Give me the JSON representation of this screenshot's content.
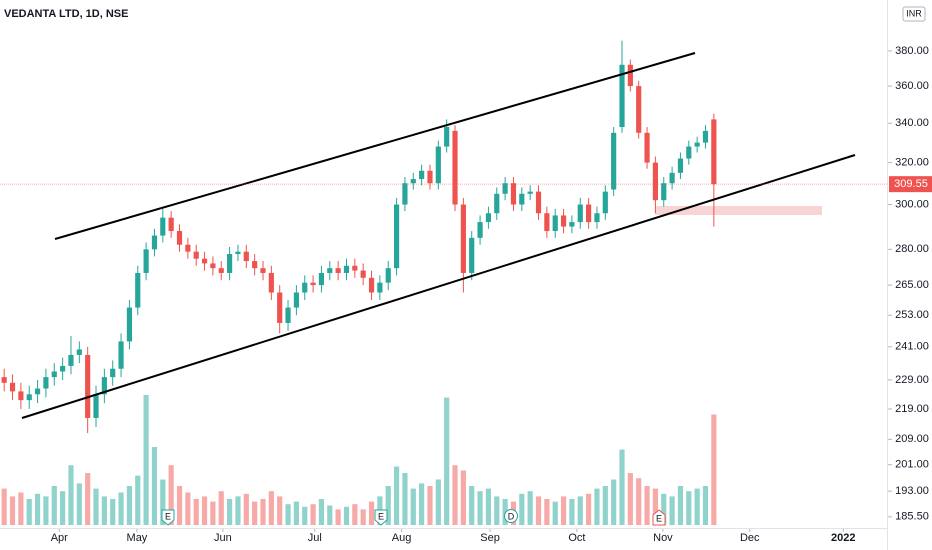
{
  "chart_data": {
    "type": "candlestick",
    "title": "VEDANTA LTD, 1D, NSE",
    "currency": "INR",
    "log_scale": true,
    "grid": false,
    "up_color": "#26a69a",
    "down_color": "#ef5350",
    "up_volume_color": "#8fd3cc",
    "down_volume_color": "#f7a9a7",
    "ylim": [
      179,
      411
    ],
    "yticks": [
      {
        "value": 185.5,
        "label": "185.50"
      },
      {
        "value": 193,
        "label": "193.00"
      },
      {
        "value": 201,
        "label": "201.00"
      },
      {
        "value": 209,
        "label": "209.00"
      },
      {
        "value": 219,
        "label": "219.00"
      },
      {
        "value": 229,
        "label": "229.00"
      },
      {
        "value": 241,
        "label": "241.00"
      },
      {
        "value": 253,
        "label": "253.00"
      },
      {
        "value": 265,
        "label": "265.00"
      },
      {
        "value": 280,
        "label": "280.00"
      },
      {
        "value": 300,
        "label": "300.00"
      },
      {
        "value": 320,
        "label": "320.00"
      },
      {
        "value": 340,
        "label": "340.00"
      },
      {
        "value": 360,
        "label": "360.00"
      },
      {
        "value": 380,
        "label": "380.00"
      }
    ],
    "xlim": [
      -0.5,
      105.5
    ],
    "xticks": [
      {
        "value": 6.6,
        "label": "Apr"
      },
      {
        "value": 15.9,
        "label": "May"
      },
      {
        "value": 26.2,
        "label": "Jun"
      },
      {
        "value": 37.2,
        "label": "Jul"
      },
      {
        "value": 47.6,
        "label": "Aug"
      },
      {
        "value": 58.2,
        "label": "Sep"
      },
      {
        "value": 68.6,
        "label": "Oct"
      },
      {
        "value": 78.9,
        "label": "Nov"
      },
      {
        "value": 89.3,
        "label": "Dec"
      },
      {
        "value": 100.5,
        "label": "2022"
      }
    ],
    "last_price": 309.55,
    "events": [
      "E",
      "E",
      "D",
      "E"
    ],
    "open": [
      230,
      228,
      225,
      222,
      224,
      226,
      230,
      232,
      234,
      238,
      238,
      216,
      224,
      230,
      233,
      243,
      256,
      270,
      280,
      286,
      294,
      288,
      282,
      279,
      276,
      274,
      272,
      270,
      278,
      279,
      275,
      272,
      270,
      262,
      250,
      256,
      262,
      266,
      265,
      270,
      272,
      270,
      273,
      271,
      268,
      262,
      266,
      272,
      300,
      310,
      312,
      316,
      310,
      328,
      336,
      300,
      270,
      285,
      292,
      296,
      305,
      310,
      300,
      305,
      306,
      296,
      288,
      295,
      290,
      292,
      300,
      292,
      296,
      307,
      338,
      372,
      360,
      335,
      320,
      302,
      310,
      315,
      322,
      328,
      330,
      342
    ],
    "high": [
      233,
      231,
      228,
      227,
      229,
      233,
      235,
      237,
      245,
      243,
      241,
      227,
      233,
      236,
      246,
      259,
      273,
      283,
      289,
      298,
      297,
      291,
      285,
      282,
      279,
      277,
      275,
      281,
      282,
      282,
      278,
      275,
      273,
      265,
      259,
      265,
      269,
      269,
      273,
      275,
      275,
      276,
      276,
      274,
      271,
      269,
      275,
      303,
      313,
      315,
      319,
      319,
      331,
      342,
      339,
      303,
      288,
      295,
      299,
      308,
      313,
      313,
      308,
      309,
      309,
      299,
      298,
      298,
      295,
      303,
      303,
      299,
      309,
      338,
      386,
      375,
      363,
      338,
      323,
      313,
      318,
      325,
      331,
      333,
      339,
      345
    ],
    "low": [
      225,
      222,
      219,
      219,
      221,
      223,
      227,
      229,
      231,
      235,
      211,
      213,
      221,
      227,
      230,
      240,
      253,
      267,
      277,
      283,
      285,
      279,
      276,
      273,
      271,
      269,
      267,
      267,
      275,
      272,
      269,
      267,
      259,
      246,
      247,
      253,
      259,
      262,
      262,
      267,
      267,
      267,
      268,
      265,
      259,
      259,
      263,
      269,
      297,
      307,
      309,
      307,
      307,
      325,
      297,
      262,
      267,
      282,
      289,
      293,
      302,
      297,
      297,
      302,
      293,
      285,
      285,
      287,
      287,
      289,
      289,
      289,
      293,
      304,
      335,
      357,
      332,
      317,
      296,
      299,
      307,
      312,
      319,
      325,
      327,
      290
    ],
    "close": [
      228,
      225,
      222,
      224,
      226,
      230,
      232,
      234,
      238,
      240,
      216,
      224,
      230,
      233,
      243,
      256,
      270,
      280,
      286,
      294,
      288,
      282,
      279,
      276,
      274,
      272,
      270,
      278,
      279,
      275,
      272,
      270,
      262,
      250,
      256,
      262,
      266,
      265,
      270,
      272,
      270,
      273,
      271,
      268,
      262,
      266,
      272,
      300,
      310,
      312,
      316,
      310,
      328,
      338,
      300,
      270,
      285,
      292,
      296,
      305,
      310,
      300,
      305,
      306,
      296,
      288,
      295,
      290,
      292,
      300,
      292,
      296,
      306,
      335,
      372,
      360,
      335,
      320,
      302,
      310,
      315,
      322,
      328,
      330,
      336,
      309.55
    ],
    "volume_lim": [
      0,
      100
    ],
    "volume": [
      28,
      22,
      25,
      20,
      24,
      22,
      30,
      26,
      46,
      32,
      40,
      28,
      22,
      20,
      25,
      30,
      38,
      100,
      60,
      35,
      46,
      30,
      25,
      20,
      22,
      18,
      26,
      20,
      22,
      24,
      18,
      20,
      26,
      22,
      16,
      18,
      14,
      16,
      20,
      15,
      12,
      14,
      16,
      12,
      18,
      22,
      30,
      45,
      40,
      28,
      32,
      30,
      35,
      98,
      46,
      42,
      30,
      26,
      28,
      22,
      20,
      18,
      24,
      26,
      22,
      20,
      18,
      22,
      20,
      22,
      24,
      28,
      30,
      35,
      58,
      40,
      36,
      30,
      28,
      24,
      22,
      30,
      26,
      28,
      30,
      85
    ]
  }
}
